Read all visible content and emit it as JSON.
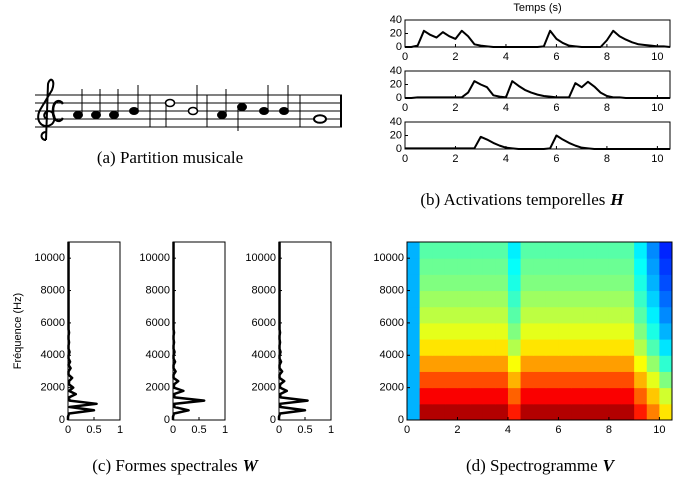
{
  "score": {
    "caption": "(a) Partition musicale"
  },
  "chart_data": [
    {
      "type": "line",
      "title": "Temps (s)",
      "caption": "(b) Activations temporelles",
      "caption_symbol": "H",
      "x": [
        0,
        0.25,
        0.5,
        0.75,
        1,
        1.25,
        1.5,
        1.75,
        2,
        2.25,
        2.5,
        2.75,
        3,
        3.25,
        3.5,
        3.75,
        4,
        4.25,
        4.5,
        4.75,
        5,
        5.25,
        5.5,
        5.75,
        6,
        6.25,
        6.5,
        6.75,
        7,
        7.25,
        7.5,
        7.75,
        8,
        8.25,
        8.5,
        8.75,
        9,
        9.25,
        9.5,
        9.75,
        10,
        10.25,
        10.5
      ],
      "series": [
        {
          "color": "#000000",
          "values": [
            0,
            0,
            2,
            24,
            18,
            14,
            22,
            16,
            12,
            24,
            16,
            4,
            2,
            1,
            0,
            0,
            0,
            0,
            0,
            0,
            0,
            0,
            1,
            24,
            12,
            6,
            2,
            1,
            0,
            0,
            0,
            0,
            10,
            24,
            16,
            11,
            7,
            4,
            3,
            2,
            1,
            1,
            0
          ]
        },
        {
          "color": "#000000",
          "values": [
            0,
            0,
            1,
            1,
            1,
            1,
            1,
            1,
            1,
            1,
            8,
            25,
            20,
            16,
            4,
            2,
            1,
            25,
            18,
            12,
            8,
            5,
            3,
            2,
            1,
            1,
            1,
            22,
            16,
            24,
            17,
            8,
            3,
            1,
            1,
            0,
            0,
            0,
            0,
            0,
            0,
            0,
            0
          ]
        },
        {
          "color": "#000000",
          "values": [
            1,
            1,
            1,
            1,
            1,
            1,
            1,
            1,
            1,
            1,
            1,
            1,
            18,
            14,
            9,
            5,
            2,
            1,
            0,
            0,
            0,
            0,
            0,
            1,
            20,
            14,
            9,
            5,
            2,
            1,
            0,
            0,
            0,
            0,
            0,
            0,
            0,
            0,
            0,
            0,
            0,
            0,
            0
          ]
        }
      ],
      "xlim": [
        0,
        10.5
      ],
      "xticks": [
        0,
        2,
        4,
        6,
        8,
        10
      ],
      "ylim": [
        0,
        40
      ],
      "yticks": [
        0,
        20,
        40
      ]
    },
    {
      "type": "line",
      "orientation": "horizontal",
      "caption": "(c) Formes spectrales",
      "caption_symbol": "W",
      "ylabel": "Fréquence (Hz)",
      "y": [
        0,
        200,
        400,
        600,
        800,
        1000,
        1200,
        1400,
        1600,
        1800,
        2000,
        2200,
        2400,
        2600,
        2800,
        3000,
        3200,
        3400,
        3600,
        3800,
        4000,
        4200,
        4400,
        4600,
        4800,
        5000,
        5200,
        5400,
        5600,
        5800,
        6000,
        8000,
        10000,
        11000
      ],
      "series": [
        {
          "color": "#000000",
          "values": [
            0,
            0,
            0.02,
            0.5,
            0.03,
            0.55,
            0.03,
            0.02,
            0.15,
            0.02,
            0.1,
            0.02,
            0.02,
            0.08,
            0.01,
            0.01,
            0.05,
            0.01,
            0.04,
            0.01,
            0.01,
            0.03,
            0.01,
            0.01,
            0.02,
            0.01,
            0.01,
            0.02,
            0.01,
            0.01,
            0.01,
            0.01,
            0.01,
            0.01
          ]
        },
        {
          "color": "#000000",
          "values": [
            0,
            0,
            0.02,
            0.3,
            0.03,
            0.02,
            0.6,
            0.03,
            0.02,
            0.2,
            0.02,
            0.02,
            0.1,
            0.01,
            0.01,
            0.05,
            0.01,
            0.01,
            0.04,
            0.01,
            0.01,
            0.03,
            0.01,
            0.01,
            0.02,
            0.01,
            0.01,
            0.02,
            0.01,
            0.01,
            0.01,
            0.01,
            0.01,
            0.01
          ]
        },
        {
          "color": "#000000",
          "values": [
            0,
            0,
            0.02,
            0.5,
            0.03,
            0.02,
            0.55,
            0.03,
            0.02,
            0.15,
            0.02,
            0.02,
            0.1,
            0.01,
            0.01,
            0.06,
            0.01,
            0.01,
            0.04,
            0.01,
            0.01,
            0.03,
            0.01,
            0.01,
            0.02,
            0.01,
            0.01,
            0.02,
            0.01,
            0.01,
            0.01,
            0.01,
            0.01,
            0.01
          ]
        }
      ],
      "xlim": [
        0,
        1
      ],
      "xticks": [
        0,
        0.5,
        1
      ],
      "ylim": [
        0,
        11000
      ],
      "yticks": [
        0,
        2000,
        4000,
        6000,
        8000,
        10000
      ]
    },
    {
      "type": "heatmap",
      "colormap": "jet",
      "caption": "(d) Spectrogramme",
      "caption_symbol": "V",
      "xbins": [
        0,
        0.5,
        1,
        1.5,
        2,
        2.5,
        3,
        3.5,
        4,
        4.5,
        5,
        5.5,
        6,
        6.5,
        7,
        7.5,
        8,
        8.5,
        9,
        9.5,
        10,
        10.5
      ],
      "ybins": [
        0,
        1000,
        2000,
        3000,
        4000,
        5000,
        6000,
        7000,
        8000,
        9000,
        10000,
        11000
      ],
      "z": [
        [
          0.3,
          0.95,
          0.95,
          0.95,
          0.95,
          0.95,
          0.95,
          0.95,
          0.85,
          0.95,
          0.95,
          0.95,
          0.95,
          0.95,
          0.95,
          0.95,
          0.95,
          0.95,
          0.85,
          0.75,
          0.65
        ],
        [
          0.3,
          0.88,
          0.88,
          0.88,
          0.88,
          0.88,
          0.88,
          0.88,
          0.78,
          0.88,
          0.88,
          0.88,
          0.88,
          0.88,
          0.88,
          0.88,
          0.88,
          0.88,
          0.78,
          0.68,
          0.58
        ],
        [
          0.3,
          0.8,
          0.8,
          0.8,
          0.8,
          0.8,
          0.8,
          0.8,
          0.7,
          0.8,
          0.8,
          0.8,
          0.8,
          0.8,
          0.8,
          0.8,
          0.8,
          0.8,
          0.7,
          0.6,
          0.5
        ],
        [
          0.3,
          0.72,
          0.72,
          0.72,
          0.72,
          0.72,
          0.72,
          0.72,
          0.62,
          0.72,
          0.72,
          0.72,
          0.72,
          0.72,
          0.72,
          0.72,
          0.72,
          0.72,
          0.62,
          0.52,
          0.42
        ],
        [
          0.3,
          0.65,
          0.65,
          0.65,
          0.65,
          0.65,
          0.65,
          0.65,
          0.55,
          0.65,
          0.65,
          0.65,
          0.65,
          0.65,
          0.65,
          0.65,
          0.65,
          0.65,
          0.55,
          0.45,
          0.35
        ],
        [
          0.3,
          0.6,
          0.6,
          0.6,
          0.6,
          0.6,
          0.6,
          0.6,
          0.5,
          0.6,
          0.6,
          0.6,
          0.6,
          0.6,
          0.6,
          0.6,
          0.6,
          0.6,
          0.5,
          0.4,
          0.3
        ],
        [
          0.3,
          0.56,
          0.56,
          0.56,
          0.56,
          0.56,
          0.56,
          0.56,
          0.46,
          0.56,
          0.56,
          0.56,
          0.56,
          0.56,
          0.56,
          0.56,
          0.56,
          0.56,
          0.46,
          0.36,
          0.26
        ],
        [
          0.3,
          0.53,
          0.53,
          0.53,
          0.53,
          0.53,
          0.53,
          0.53,
          0.43,
          0.53,
          0.53,
          0.53,
          0.53,
          0.53,
          0.53,
          0.53,
          0.53,
          0.53,
          0.43,
          0.33,
          0.23
        ],
        [
          0.3,
          0.5,
          0.5,
          0.5,
          0.5,
          0.5,
          0.5,
          0.5,
          0.4,
          0.5,
          0.5,
          0.5,
          0.5,
          0.5,
          0.5,
          0.5,
          0.5,
          0.5,
          0.4,
          0.3,
          0.2
        ],
        [
          0.3,
          0.48,
          0.48,
          0.48,
          0.48,
          0.48,
          0.48,
          0.48,
          0.38,
          0.48,
          0.48,
          0.48,
          0.48,
          0.48,
          0.48,
          0.48,
          0.48,
          0.48,
          0.38,
          0.28,
          0.18
        ],
        [
          0.3,
          0.46,
          0.46,
          0.46,
          0.46,
          0.46,
          0.46,
          0.46,
          0.36,
          0.46,
          0.46,
          0.46,
          0.46,
          0.46,
          0.46,
          0.46,
          0.46,
          0.46,
          0.36,
          0.26,
          0.16
        ]
      ],
      "xlim": [
        0,
        10.5
      ],
      "xticks": [
        0,
        2,
        4,
        6,
        8,
        10
      ],
      "ylim": [
        0,
        11000
      ],
      "yticks": [
        0,
        2000,
        4000,
        6000,
        8000,
        10000
      ]
    }
  ]
}
